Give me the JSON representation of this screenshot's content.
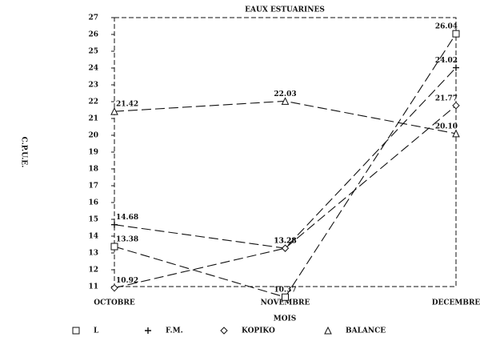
{
  "chart_data": {
    "type": "line",
    "title": "EAUX ESTUARINES",
    "x_label": "MOIS",
    "y_label": "C.P.U.E.",
    "categories": [
      "OCTOBRE",
      "NOVEMBRE",
      "DECEMBRE"
    ],
    "series": [
      {
        "name": "L",
        "color": "#111111",
        "marker": "square",
        "values": [
          13.38,
          10.37,
          26.04
        ]
      },
      {
        "name": "F.M.",
        "color": "#111111",
        "marker": "plus",
        "values": [
          14.68,
          13.28,
          24.02
        ]
      },
      {
        "name": "KOPIKO",
        "color": "#111111",
        "marker": "diamond",
        "values": [
          10.92,
          13.28,
          21.77
        ]
      },
      {
        "name": "BALANCE",
        "color": "#111111",
        "marker": "triangle",
        "values": [
          21.42,
          22.03,
          20.1
        ]
      }
    ],
    "ylim": [
      11,
      27
    ],
    "yticks": [
      11,
      12,
      13,
      14,
      15,
      16,
      17,
      18,
      19,
      20,
      21,
      22,
      23,
      24,
      25,
      26,
      27
    ],
    "legend": "bottom"
  }
}
